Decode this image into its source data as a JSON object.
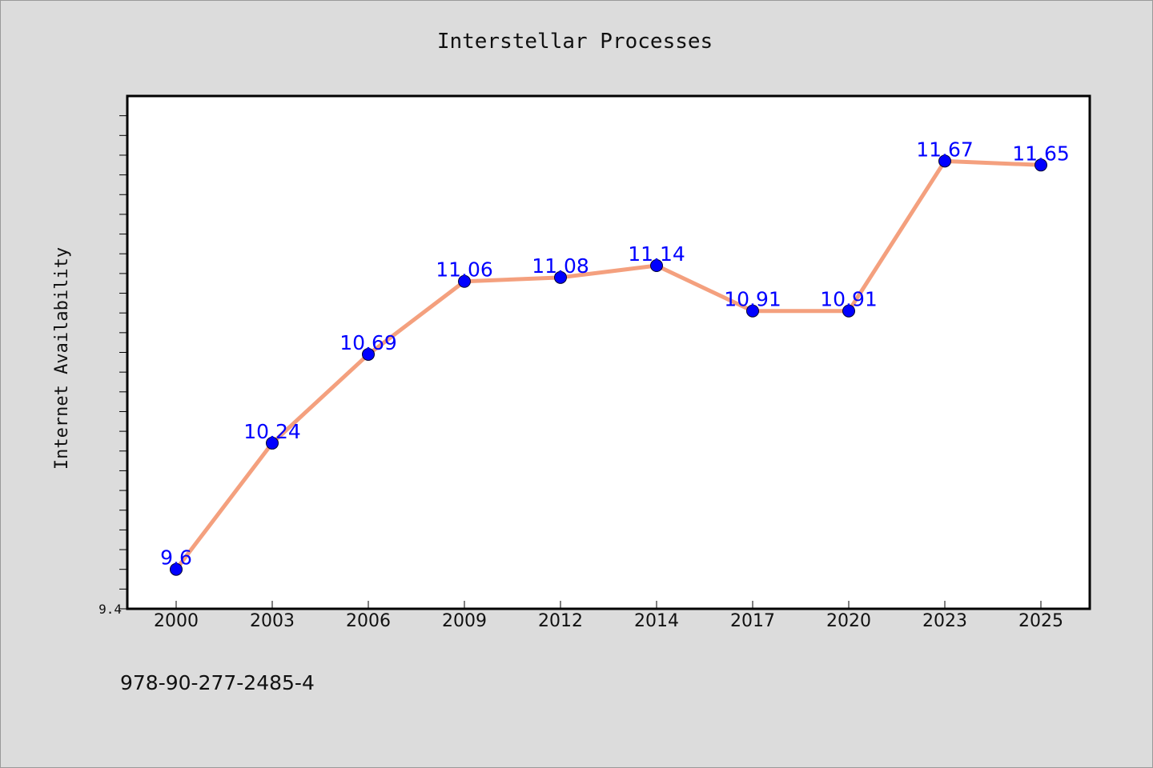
{
  "chart_data": {
    "type": "line",
    "title": "Interstellar Processes",
    "xlabel": "",
    "ylabel": "Internet Availability",
    "categories": [
      "2000",
      "2003",
      "2006",
      "2009",
      "2012",
      "2014",
      "2017",
      "2020",
      "2023",
      "2025"
    ],
    "series": [
      {
        "values": [
          9.6,
          10.24,
          10.69,
          11.06,
          11.08,
          11.14,
          10.91,
          10.91,
          11.67,
          11.65
        ],
        "data_labels": [
          "9.6",
          "10.24",
          "10.69",
          "11.06",
          "11.08",
          "11.14",
          "10.91",
          "10.91",
          "11.67",
          "11.65"
        ]
      }
    ],
    "ylim": [
      9.4,
      12.0
    ],
    "yticks_labeled": [
      "9.4"
    ],
    "grid": false,
    "legend": "none",
    "colors": {
      "line": "#f4a07e",
      "marker": "#0000ff",
      "label": "#0000ff",
      "background": "#dcdcdc",
      "plot_area": "#ffffff"
    }
  },
  "footer": {
    "isbn": "978-90-277-2485-4"
  }
}
